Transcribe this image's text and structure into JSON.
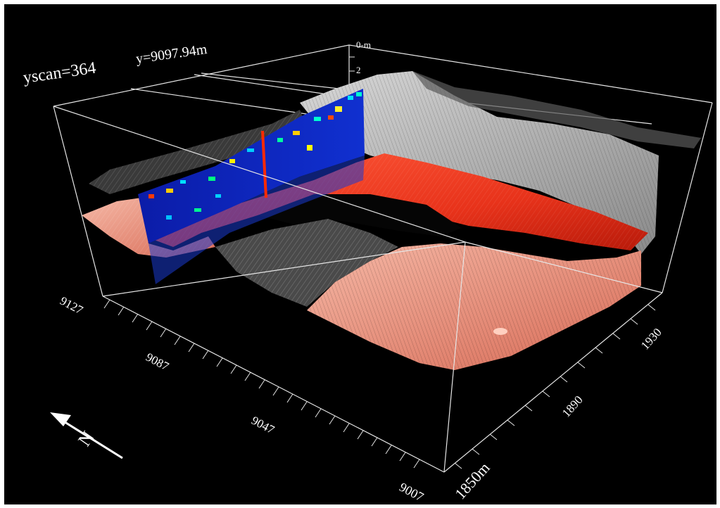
{
  "header": {
    "scan_label": "yscan=364",
    "y_label": "y=9097.94m"
  },
  "depth_axis": {
    "ticks": [
      "0-m",
      "2"
    ]
  },
  "x_axis": {
    "ticks": [
      "9127",
      "9087",
      "9047",
      "9007"
    ]
  },
  "y_axis": {
    "ticks": [
      "1850m",
      "1890",
      "1930"
    ]
  },
  "compass": {
    "label": "N"
  },
  "colors": {
    "background": "#000000",
    "frame": "#e6e6e6",
    "gpr_section": "#0a1aa6",
    "gpr_hot": "#ff2a00",
    "surface_red": "#e8331b",
    "surface_pink": "#f0a08c",
    "surface_grey": "#bfbfbf"
  }
}
